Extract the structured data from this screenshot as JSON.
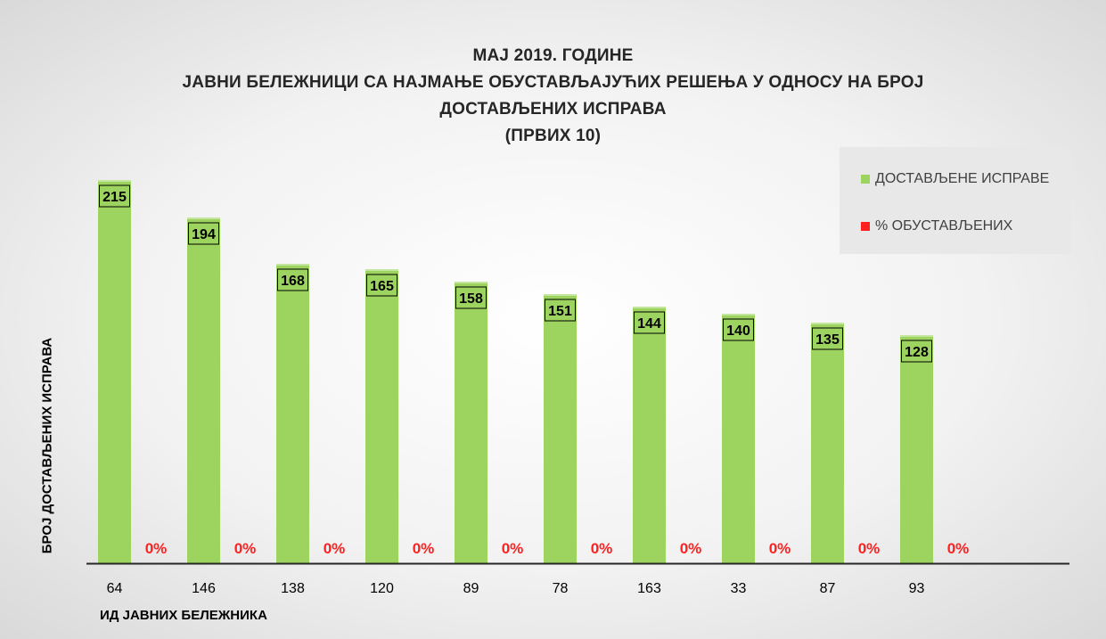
{
  "chart_data": {
    "type": "bar",
    "title_lines": [
      "МАЈ 2019. ГОДИНЕ",
      "ЈАВНИ БЕЛЕЖНИЦИ СА НАЈМАЊЕ ОБУСТАВЉАЈУЋИХ РЕШЕЊА У ОДНОСУ НА БРОЈ",
      "ДОСТАВЉЕНИХ ИСПРАВА",
      "(ПРВИХ 10)"
    ],
    "xlabel": "ИД ЈАВНИХ БЕЛЕЖНИКА",
    "ylabel": "БРОЈ ДОСТАВЉЕНИХ ИСПРАВА",
    "categories": [
      "64",
      "146",
      "138",
      "120",
      "89",
      "78",
      "163",
      "33",
      "87",
      "93"
    ],
    "series": [
      {
        "name": "ДОСТАВЉЕНЕ ИСПРАВЕ",
        "color": "#9dd45f",
        "values": [
          215,
          194,
          168,
          165,
          158,
          151,
          144,
          140,
          135,
          128
        ],
        "labels": [
          "215",
          "194",
          "168",
          "165",
          "158",
          "151",
          "144",
          "140",
          "135",
          "128"
        ]
      },
      {
        "name": "% ОБУСТАВЉЕНИХ",
        "color": "#ff2020",
        "values": [
          0,
          0,
          0,
          0,
          0,
          0,
          0,
          0,
          0,
          0
        ],
        "labels": [
          "0%",
          "0%",
          "0%",
          "0%",
          "0%",
          "0%",
          "0%",
          "0%",
          "0%",
          "0%"
        ]
      }
    ],
    "ylim": [
      0,
      220
    ],
    "grid": false,
    "legend_position": "top-right"
  }
}
